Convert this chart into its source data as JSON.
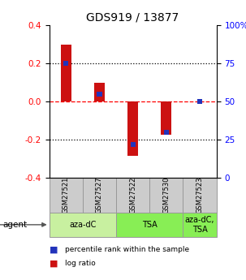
{
  "title": "GDS919 / 13877",
  "samples": [
    "GSM27521",
    "GSM27527",
    "GSM27522",
    "GSM27530",
    "GSM27523"
  ],
  "log_ratios": [
    0.3,
    0.1,
    -0.285,
    -0.175,
    0.0
  ],
  "percentile_ranks": [
    0.75,
    0.55,
    0.22,
    0.3,
    0.5
  ],
  "ylim": [
    -0.4,
    0.4
  ],
  "yticks_left": [
    -0.4,
    -0.2,
    0.0,
    0.2,
    0.4
  ],
  "yticks_right_pct": [
    0,
    25,
    50,
    75,
    100
  ],
  "bar_color": "#cc1111",
  "blue_color": "#2233bb",
  "sample_box_color": "#cccccc",
  "sample_box_edge": "#999999",
  "agent_groups": [
    {
      "label": "aza-dC",
      "start": 0,
      "end": 2,
      "color": "#c8f0a0"
    },
    {
      "label": "TSA",
      "start": 2,
      "end": 4,
      "color": "#88ee55"
    },
    {
      "label": "aza-dC,\nTSA",
      "start": 4,
      "end": 5,
      "color": "#88ee55"
    }
  ],
  "legend_items": [
    {
      "color": "#cc1111",
      "label": "log ratio"
    },
    {
      "color": "#2233bb",
      "label": "percentile rank within the sample"
    }
  ],
  "bar_width": 0.32,
  "blue_bar_width": 0.15,
  "blue_bar_height": 0.025
}
